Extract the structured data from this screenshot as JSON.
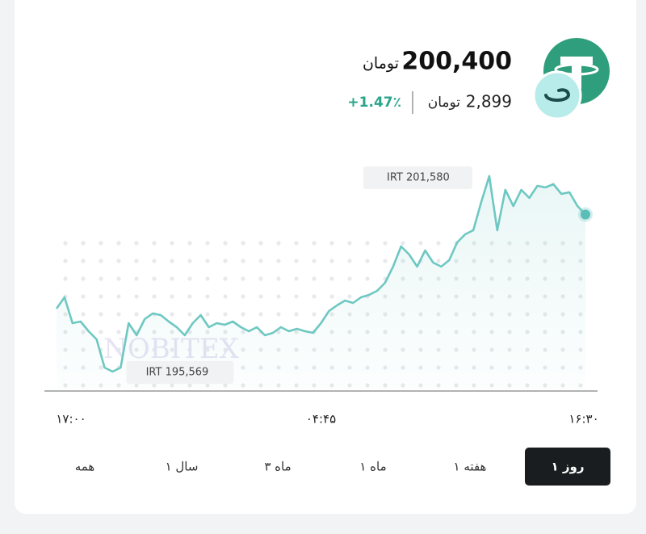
{
  "header": {
    "price": "200,400",
    "price_unit": "تومان",
    "usd_price": "2,899",
    "usd_unit": "تومان",
    "change": "+1.47٪"
  },
  "chart_data": {
    "type": "line",
    "watermark": "NOBITEX",
    "color": "#6ec8c2",
    "categories": [
      "۱۷:۰۰",
      null,
      null,
      null,
      null,
      null,
      null,
      null,
      null,
      null,
      null,
      null,
      null,
      null,
      null,
      null,
      null,
      null,
      null,
      null,
      null,
      null,
      null,
      null,
      null,
      null,
      null,
      null,
      null,
      null,
      null,
      null,
      null,
      "۰۴:۴۵",
      null,
      null,
      null,
      null,
      null,
      null,
      null,
      null,
      null,
      null,
      null,
      null,
      null,
      null,
      null,
      null,
      null,
      null,
      null,
      null,
      null,
      null,
      null,
      null,
      null,
      null,
      null,
      null,
      null,
      null,
      null,
      null,
      "۱۶:۳۰"
    ],
    "values": [
      197506,
      197854,
      197059,
      197109,
      196811,
      196562,
      195693,
      195569,
      195693,
      197059,
      196687,
      197183,
      197357,
      197308,
      197109,
      196935,
      196687,
      197059,
      197308,
      196935,
      197059,
      197009,
      197109,
      196935,
      196811,
      196935,
      196687,
      196761,
      196935,
      196811,
      196885,
      196811,
      196761,
      197059,
      197432,
      197606,
      197755,
      197680,
      197854,
      197929,
      198053,
      198301,
      198798,
      199419,
      199171,
      198798,
      199295,
      198922,
      198797,
      198997,
      199543,
      199792,
      199916,
      200785,
      201580,
      199916,
      201158,
      200661,
      201158,
      200909,
      201282,
      201232,
      201332,
      201034,
      201083,
      200661,
      200400
    ],
    "max_label": "IRT 201,580",
    "min_label": "IRT 195,569"
  },
  "range_buttons": [
    "۱ روز",
    "۱ هفته",
    "۱ ماه",
    "۳ ماه",
    "۱ سال",
    "همه"
  ]
}
